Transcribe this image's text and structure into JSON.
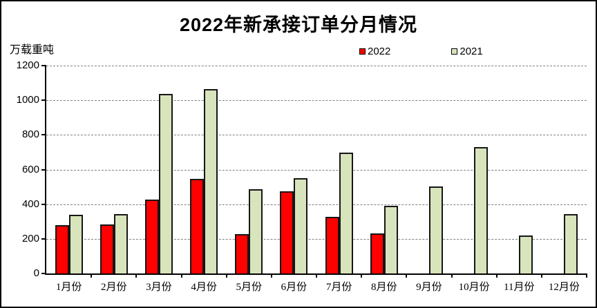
{
  "chart_data": {
    "type": "bar",
    "title": "2022年新承接订单分月情况",
    "unit_label": "万载重吨",
    "categories": [
      "1月份",
      "2月份",
      "3月份",
      "4月份",
      "5月份",
      "6月份",
      "7月份",
      "8月份",
      "9月份",
      "10月份",
      "11月份",
      "12月份"
    ],
    "series": [
      {
        "name": "2022",
        "color": "#ff0000",
        "values": [
          280,
          283,
          428,
          545,
          228,
          475,
          326,
          231,
          null,
          null,
          null,
          null
        ]
      },
      {
        "name": "2021",
        "color": "#d8e4bc",
        "values": [
          338,
          341,
          1036,
          1066,
          487,
          550,
          698,
          389,
          503,
          730,
          220,
          343
        ]
      }
    ],
    "ylim": [
      0,
      1200
    ],
    "yticks": [
      0,
      200,
      400,
      600,
      800,
      1000,
      1200
    ],
    "grid": "horizontal-dashed",
    "legend_position": "top-center",
    "colors": {
      "bar_border": "#161616",
      "gridline": "#7f7f7f",
      "axis": "#000000",
      "background": "#ffffff"
    }
  }
}
